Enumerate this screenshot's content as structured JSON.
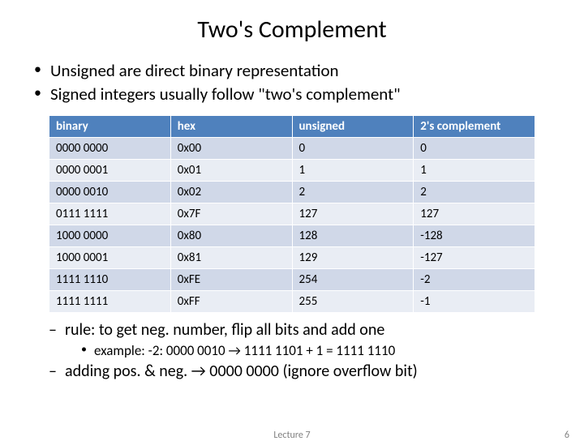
{
  "title": "Two's Complement",
  "top_bullets": [
    "Unsigned are direct binary representation",
    "Signed integers usually follow \"two's complement\""
  ],
  "table": {
    "header_bg": "#4f81bd",
    "header_fg": "#ffffff",
    "band_a_bg": "#d0d8e8",
    "band_b_bg": "#e9edf4",
    "columns": [
      "binary",
      "hex",
      "unsigned",
      "2's complement"
    ],
    "rows": [
      [
        "0000 0000",
        "0x00",
        "0",
        "0"
      ],
      [
        "0000 0001",
        "0x01",
        "1",
        "1"
      ],
      [
        "0000 0010",
        "0x02",
        "2",
        "2"
      ],
      [
        "0111 1111",
        "0x7F",
        "127",
        "127"
      ],
      [
        "1000 0000",
        "0x80",
        "128",
        "-128"
      ],
      [
        "1000 0001",
        "0x81",
        "129",
        "-127"
      ],
      [
        "1111 1110",
        "0xFE",
        "254",
        "-2"
      ],
      [
        "1111 1111",
        "0xFF",
        "255",
        "-1"
      ]
    ]
  },
  "bottom": {
    "rule": "rule: to get neg. number, flip all bits and add one",
    "example": "example: -2: 0000 0010 → 1111 1101 + 1 = 1111 1110",
    "adding": "adding pos. & neg. → 0000 0000 (ignore overflow bit)"
  },
  "footer": {
    "lecture": "Lecture 7",
    "page": "6"
  }
}
